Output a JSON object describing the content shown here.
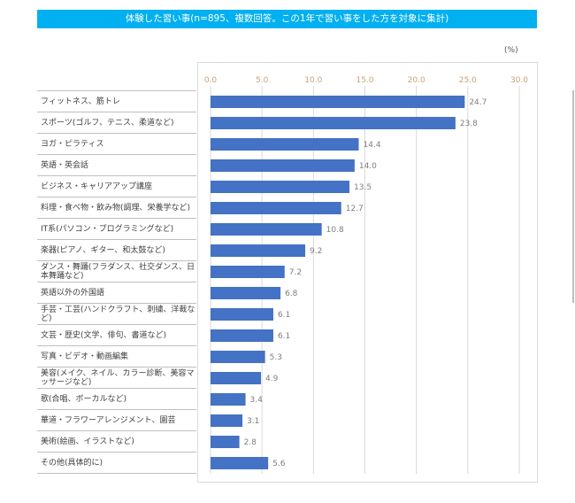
{
  "colors": {
    "title_bg": "#00B0F0",
    "bar": "#4472C4",
    "tick_label": "#C9A277",
    "value_label": "#7F7F7F",
    "grid": "#D9D9D9"
  },
  "chart_data": {
    "type": "bar",
    "orientation": "horizontal",
    "title": "体験した習い事(n=895、複数回答。この1年で習い事をした方を対象に集計)",
    "unit_label": "(%)",
    "xlim": [
      0,
      30
    ],
    "x_ticks": [
      "0.0",
      "5.0",
      "10.0",
      "15.0",
      "20.0",
      "25.0",
      "30.0"
    ],
    "x_tick_values": [
      0,
      5,
      10,
      15,
      20,
      25,
      30
    ],
    "grid": true,
    "categories": [
      "フィットネス、筋トレ",
      "スポーツ(ゴルフ、テニス、柔道など)",
      "ヨガ・ピラティス",
      "英語・英会話",
      "ビジネス・キャリアアップ講座",
      "料理・食べ物・飲み物(調理、栄養学など)",
      "IT系(パソコン・プログラミングなど)",
      "楽器(ピアノ、ギター、和太鼓など)",
      "ダンス・舞踊(フラダンス、社交ダンス、日本舞踊など)",
      "英語以外の外国語",
      "手芸・工芸(ハンドクラフト、刺繍、洋裁など)",
      "文芸・歴史(文学、俳句、書道など)",
      "写真・ビデオ・動画編集",
      "美容(メイク、ネイル、カラー診断、美容マッサージなど)",
      "歌(合唱、ボーカルなど)",
      "華道・フラワーアレンジメント、園芸",
      "美術(絵画、イラストなど)",
      "その他(具体的に)"
    ],
    "values": [
      24.7,
      23.8,
      14.4,
      14.0,
      13.5,
      12.7,
      10.8,
      9.2,
      7.2,
      6.8,
      6.1,
      6.1,
      5.3,
      4.9,
      3.4,
      3.1,
      2.8,
      5.6
    ],
    "value_labels": [
      "24.7",
      "23.8",
      "14.4",
      "14.0",
      "13.5",
      "12.7",
      "10.8",
      "9.2",
      "7.2",
      "6.8",
      "6.1",
      "6.1",
      "5.3",
      "4.9",
      "3.4",
      "3.1",
      "2.8",
      "5.6"
    ]
  }
}
